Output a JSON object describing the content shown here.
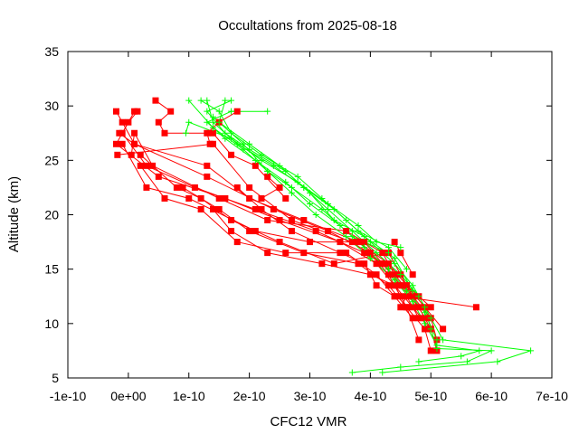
{
  "chart_data": {
    "type": "line",
    "title": "Occultations from 2025-08-18",
    "xlabel": "CFC12 VMR",
    "ylabel": "Altitude (km)",
    "xlim": [
      -1e-10,
      7e-10
    ],
    "ylim": [
      5,
      35
    ],
    "x_ticks": [
      -1e-10,
      0,
      1e-10,
      2e-10,
      3e-10,
      4e-10,
      5e-10,
      6e-10,
      7e-10
    ],
    "x_tick_labels": [
      "-1e-10",
      "0e+00",
      "1e-10",
      "2e-10",
      "3e-10",
      "4e-10",
      "5e-10",
      "6e-10",
      "7e-10"
    ],
    "y_ticks": [
      5,
      10,
      15,
      20,
      25,
      30,
      35
    ],
    "y_tick_labels": [
      "5",
      "10",
      "15",
      "20",
      "25",
      "30",
      "35"
    ],
    "grid": false,
    "legend": "none",
    "series": [
      {
        "color": "#ff0000",
        "marker": "square",
        "profiles": [
          [
            [
              5.75e-10,
              11.5
            ],
            [
              4.5e-10,
              12.5
            ],
            [
              4.3e-10,
              14.5
            ],
            [
              4e-10,
              16.5
            ],
            [
              3.3e-10,
              18.5
            ],
            [
              2.4e-10,
              20.5
            ],
            [
              1.3e-10,
              23.5
            ],
            [
              1e-11,
              26.5
            ],
            [
              -1e-11,
              28.5
            ],
            [
              -2e-11,
              29.5
            ]
          ],
          [
            [
              5.1e-10,
              8.5
            ],
            [
              5e-10,
              10.5
            ],
            [
              4.7e-10,
              12.5
            ],
            [
              4.5e-10,
              14.5
            ],
            [
              3.9e-10,
              16.5
            ],
            [
              3.1e-10,
              18.5
            ],
            [
              2.1e-10,
              20.5
            ],
            [
              1.1e-10,
              22.5
            ],
            [
              3e-11,
              24.5
            ],
            [
              -1e-11,
              27.5
            ],
            [
              1e-11,
              29.5
            ]
          ],
          [
            [
              4.9e-10,
              9.5
            ],
            [
              4.6e-10,
              11.5
            ],
            [
              4.4e-10,
              13.5
            ],
            [
              4.1e-10,
              15.5
            ],
            [
              3.5e-10,
              17.5
            ],
            [
              2.5e-10,
              19.5
            ],
            [
              1.6e-10,
              21.5
            ],
            [
              5e-11,
              23.5
            ],
            [
              -2e-11,
              26.5
            ],
            [
              0.0,
              28.5
            ],
            [
              1.5e-11,
              29.5
            ]
          ],
          [
            [
              5.2e-10,
              9.5
            ],
            [
              4.9e-10,
              11.5
            ],
            [
              4.6e-10,
              13.5
            ],
            [
              4.3e-10,
              15.5
            ],
            [
              3.8e-10,
              17.5
            ],
            [
              2.9e-10,
              19.5
            ],
            [
              2e-10,
              21.5
            ],
            [
              1.3e-10,
              24.5
            ],
            [
              1e-11,
              26.5
            ],
            [
              -1.5e-11,
              27.5
            ]
          ],
          [
            [
              5.1e-10,
              7.5
            ],
            [
              5e-10,
              9.5
            ],
            [
              4.8e-10,
              11.5
            ],
            [
              4.5e-10,
              13.5
            ],
            [
              4.2e-10,
              15.5
            ],
            [
              3.7e-10,
              17.5
            ],
            [
              2.7e-10,
              19.5
            ],
            [
              2e-10,
              22.5
            ],
            [
              1.4e-10,
              26.5
            ],
            [
              -1.8e-11,
              25.5
            ]
          ],
          [
            [
              4.9e-10,
              10.5
            ],
            [
              4.7e-10,
              12.5
            ],
            [
              4.4e-10,
              14.5
            ],
            [
              4.2e-10,
              16.5
            ],
            [
              3.6e-10,
              18.5
            ],
            [
              2.3e-10,
              19.5
            ],
            [
              1.5e-10,
              21.5
            ],
            [
              4e-11,
              24.5
            ],
            [
              1e-11,
              27.5
            ],
            [
              5e-12,
              25.5
            ]
          ],
          [
            [
              4.8e-10,
              12.5
            ],
            [
              4.5e-10,
              13.5
            ],
            [
              4.2e-10,
              15.5
            ],
            [
              3.9e-10,
              17.5
            ],
            [
              3e-10,
              17.5
            ],
            [
              2.1e-10,
              18.5
            ],
            [
              1e-10,
              21.5
            ],
            [
              3e-11,
              22.5
            ],
            [
              -1e-11,
              26.5
            ]
          ],
          [
            [
              4.7e-10,
              10.5
            ],
            [
              4.4e-10,
              12.5
            ],
            [
              4.1e-10,
              14.5
            ],
            [
              3.6e-10,
              16.5
            ],
            [
              2.6e-10,
              16.5
            ],
            [
              1.8e-10,
              17.5
            ],
            [
              1.2e-10,
              20.5
            ],
            [
              6e-11,
              21.5
            ],
            [
              2e-11,
              24.5
            ]
          ],
          [
            [
              5e-10,
              11.5
            ],
            [
              4.6e-10,
              13.5
            ],
            [
              4.3e-10,
              16.5
            ],
            [
              3.4e-10,
              15.5
            ],
            [
              2.5e-10,
              17.5
            ],
            [
              1.7e-10,
              19.5
            ],
            [
              1.2e-10,
              21.5
            ],
            [
              8e-11,
              22.5
            ],
            [
              2e-11,
              25.5
            ]
          ],
          [
            [
              4.8e-10,
              8.5
            ],
            [
              4.6e-10,
              11.5
            ],
            [
              4.3e-10,
              13.5
            ],
            [
              3.8e-10,
              15.5
            ],
            [
              2.9e-10,
              16.5
            ],
            [
              2e-10,
              18.5
            ],
            [
              1.5e-10,
              20.5
            ],
            [
              9e-11,
              22.5
            ]
          ],
          [
            [
              5e-10,
              9.5
            ],
            [
              4.7e-10,
              11.5
            ],
            [
              4.4e-10,
              13.5
            ],
            [
              4e-10,
              14.5
            ],
            [
              3.2e-10,
              15.5
            ],
            [
              2.3e-10,
              16.5
            ],
            [
              1.7e-10,
              18.5
            ],
            [
              1.4e-10,
              20.5
            ]
          ],
          [
            [
              4.4e-10,
              12.5
            ],
            [
              4.1e-10,
              13.5
            ],
            [
              3.9e-10,
              15.5
            ],
            [
              3.5e-10,
              16.5
            ],
            [
              2.7e-10,
              18.5
            ],
            [
              2.2e-10,
              20.5
            ],
            [
              1.8e-10,
              22.5
            ]
          ],
          [
            [
              2.6e-10,
              21.5
            ],
            [
              2.1e-10,
              24.5
            ],
            [
              1.7e-10,
              25.5
            ],
            [
              1.4e-10,
              27.5
            ],
            [
              6e-11,
              27.5
            ],
            [
              5e-11,
              28.5
            ],
            [
              7e-11,
              29.5
            ],
            [
              4.5e-11,
              30.5
            ]
          ],
          [
            [
              4.7e-10,
              14.5
            ],
            [
              4.5e-10,
              16.5
            ],
            [
              4.4e-10,
              17.5
            ]
          ],
          [
            [
              1.8e-10,
              29.5
            ],
            [
              1.5e-10,
              28.5
            ],
            [
              1.3e-10,
              27.5
            ],
            [
              1.35e-10,
              26.5
            ]
          ],
          [
            [
              4.8e-10,
              10.5
            ],
            [
              4.6e-10,
              12.5
            ],
            [
              4.5e-10,
              11.5
            ]
          ],
          [
            [
              5e-10,
              7.5
            ],
            [
              4.9e-10,
              9.5
            ]
          ],
          [
            [
              2.2e-10,
              21.5
            ],
            [
              2.5e-10,
              22.5
            ],
            [
              2.3e-10,
              23.5
            ]
          ]
        ]
      },
      {
        "color": "#00ff00",
        "marker": "plus",
        "profiles": [
          [
            [
              3.7e-10,
              5.5
            ],
            [
              4.5e-10,
              6.0
            ],
            [
              5.6e-10,
              6.5
            ],
            [
              6e-10,
              7.5
            ],
            [
              5.1e-10,
              7.7
            ],
            [
              5e-10,
              9.5
            ],
            [
              4.9e-10,
              11.5
            ],
            [
              4.7e-10,
              13.5
            ],
            [
              4.4e-10,
              15.5
            ],
            [
              4e-10,
              17.5
            ],
            [
              3.6e-10,
              19.5
            ],
            [
              3.2e-10,
              21.5
            ],
            [
              2.8e-10,
              23.5
            ],
            [
              2.2e-10,
              25.5
            ],
            [
              1.7e-10,
              27.5
            ],
            [
              1.5e-10,
              29.5
            ],
            [
              1.2e-10,
              30.5
            ]
          ],
          [
            [
              4.2e-10,
              5.5
            ],
            [
              6.1e-10,
              6.5
            ],
            [
              6.65e-10,
              7.5
            ],
            [
              5.2e-10,
              8.5
            ],
            [
              5e-10,
              10.5
            ],
            [
              4.8e-10,
              12.5
            ],
            [
              4.5e-10,
              14.5
            ],
            [
              4.1e-10,
              16.5
            ],
            [
              3.7e-10,
              18.5
            ],
            [
              3.3e-10,
              20.5
            ],
            [
              2.9e-10,
              22.5
            ],
            [
              2.4e-10,
              24.5
            ],
            [
              1.8e-10,
              26.5
            ],
            [
              1.4e-10,
              28.5
            ],
            [
              1.3e-10,
              30.5
            ]
          ],
          [
            [
              4.8e-10,
              6.5
            ],
            [
              5.5e-10,
              7.0
            ],
            [
              5.8e-10,
              7.5
            ],
            [
              5.1e-10,
              8.0
            ],
            [
              4.9e-10,
              10.0
            ],
            [
              4.7e-10,
              12.0
            ],
            [
              4.4e-10,
              14.0
            ],
            [
              4e-10,
              16.0
            ],
            [
              3.6e-10,
              18.0
            ],
            [
              3.1e-10,
              20.0
            ],
            [
              2.7e-10,
              22.0
            ],
            [
              2.3e-10,
              24.0
            ],
            [
              1.9e-10,
              26.0
            ],
            [
              1.4e-10,
              28.0
            ],
            [
              1e-10,
              30.5
            ]
          ],
          [
            [
              5.1e-10,
              8.5
            ],
            [
              4.9e-10,
              11.0
            ],
            [
              4.6e-10,
              13.0
            ],
            [
              4.3e-10,
              15.0
            ],
            [
              3.9e-10,
              17.0
            ],
            [
              3.5e-10,
              19.0
            ],
            [
              3e-10,
              21.0
            ],
            [
              2.6e-10,
              23.0
            ],
            [
              2.1e-10,
              25.0
            ],
            [
              1.6e-10,
              27.0
            ],
            [
              1.3e-10,
              28.5
            ],
            [
              1.7e-10,
              29.5
            ],
            [
              2.3e-10,
              29.5
            ]
          ],
          [
            [
              4.6e-10,
              15.0
            ],
            [
              4.3e-10,
              17.0
            ],
            [
              3.8e-10,
              18.5
            ],
            [
              3.4e-10,
              20.5
            ],
            [
              2.9e-10,
              22.5
            ],
            [
              2.5e-10,
              24.5
            ],
            [
              2e-10,
              26.5
            ],
            [
              1.5e-10,
              28.5
            ],
            [
              1.6e-10,
              30.5
            ]
          ],
          [
            [
              4.7e-10,
              13.0
            ],
            [
              4.4e-10,
              16.0
            ],
            [
              3.9e-10,
              18.0
            ],
            [
              3.4e-10,
              19.5
            ],
            [
              3e-10,
              22.0
            ],
            [
              2.6e-10,
              24.0
            ],
            [
              2e-10,
              26.0
            ],
            [
              1.6e-10,
              27.5
            ],
            [
              1.3e-10,
              29.5
            ],
            [
              1.7e-10,
              30.5
            ]
          ],
          [
            [
              4.5e-10,
              17.0
            ],
            [
              4.1e-10,
              17.5
            ],
            [
              3.8e-10,
              19.0
            ],
            [
              3.3e-10,
              21.0
            ],
            [
              2.8e-10,
              23.0
            ],
            [
              2.2e-10,
              25.0
            ],
            [
              1.7e-10,
              27.0
            ],
            [
              1e-10,
              28.5
            ],
            [
              9.5e-11,
              27.5
            ]
          ],
          [
            [
              4.3e-10,
              16.5
            ],
            [
              3.7e-10,
              18.0
            ],
            [
              3.2e-10,
              20.5
            ],
            [
              2.7e-10,
              22.5
            ],
            [
              2.3e-10,
              24.0
            ],
            [
              1.9e-10,
              26.5
            ],
            [
              1.4e-10,
              29.0
            ]
          ]
        ]
      }
    ]
  }
}
